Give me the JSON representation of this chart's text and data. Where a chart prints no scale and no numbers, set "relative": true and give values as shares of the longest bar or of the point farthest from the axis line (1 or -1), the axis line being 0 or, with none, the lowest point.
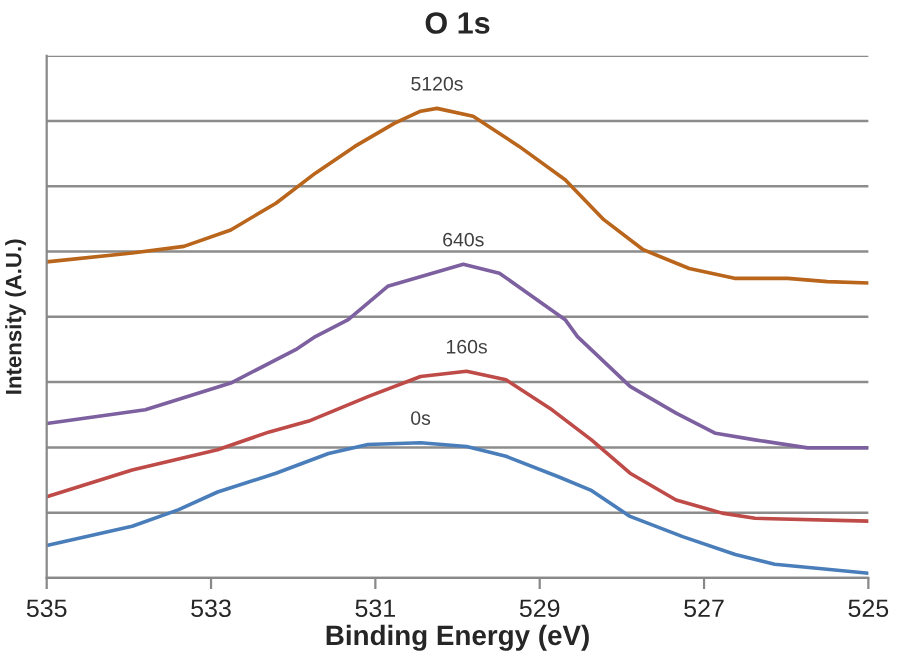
{
  "chart_data": {
    "type": "line",
    "title": "O 1s",
    "xlabel": "Binding Energy (eV)",
    "ylabel": "Intensity (A.U.)",
    "relative": true,
    "grid": "y",
    "legend": false,
    "marker": "none",
    "line_style": "solid",
    "xlim": [
      535,
      525
    ],
    "xticks": [
      535,
      533,
      531,
      529,
      527,
      525
    ],
    "series": [
      {
        "name": "5120s",
        "color": "#b9651b",
        "x": [
          535.0,
          533.96,
          533.33,
          532.76,
          532.21,
          531.73,
          531.25,
          530.77,
          530.45,
          530.25,
          529.81,
          529.25,
          528.69,
          528.22,
          527.74,
          527.18,
          526.63,
          525.98,
          525.5,
          525.0
        ],
        "values": [
          0.673,
          0.692,
          0.706,
          0.741,
          0.798,
          0.862,
          0.919,
          0.968,
          0.994,
          1.0,
          0.983,
          0.919,
          0.848,
          0.763,
          0.699,
          0.659,
          0.638,
          0.638,
          0.631,
          0.628
        ]
      },
      {
        "name": "640s",
        "color": "#7d60a0",
        "x": [
          535.0,
          533.8,
          532.76,
          531.97,
          531.73,
          531.33,
          530.85,
          529.93,
          529.49,
          528.69,
          528.54,
          527.9,
          527.34,
          526.86,
          526.38,
          525.74,
          525.0
        ],
        "values": [
          0.329,
          0.358,
          0.415,
          0.486,
          0.514,
          0.55,
          0.621,
          0.668,
          0.649,
          0.55,
          0.514,
          0.408,
          0.351,
          0.308,
          0.294,
          0.277,
          0.277
        ]
      },
      {
        "name": "160s",
        "color": "#be4b48",
        "x": [
          535.0,
          533.96,
          532.92,
          532.29,
          531.81,
          531.09,
          530.45,
          529.89,
          529.41,
          528.85,
          528.37,
          527.9,
          527.34,
          526.78,
          526.38,
          525.0
        ],
        "values": [
          0.173,
          0.23,
          0.273,
          0.311,
          0.334,
          0.386,
          0.429,
          0.44,
          0.422,
          0.358,
          0.294,
          0.223,
          0.166,
          0.138,
          0.127,
          0.121
        ]
      },
      {
        "name": "0s",
        "color": "#4a7ebb",
        "x": [
          535.0,
          533.96,
          533.4,
          532.92,
          532.21,
          531.57,
          531.09,
          530.45,
          529.89,
          529.41,
          528.78,
          528.38,
          527.9,
          527.26,
          526.62,
          526.14,
          525.66,
          525.0
        ],
        "values": [
          0.069,
          0.11,
          0.145,
          0.183,
          0.223,
          0.265,
          0.284,
          0.288,
          0.28,
          0.259,
          0.216,
          0.187,
          0.131,
          0.088,
          0.05,
          0.029,
          0.021,
          0.01
        ]
      }
    ]
  }
}
